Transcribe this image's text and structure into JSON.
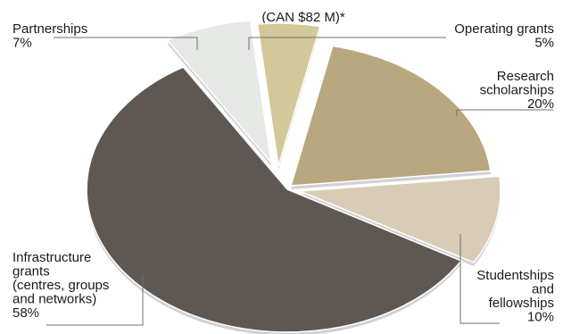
{
  "chart_data": {
    "type": "pie",
    "title": "",
    "subtitle": "(CAN $82 M)*",
    "slices": [
      {
        "label_lines": [
          "Research",
          "scholarships",
          "20%"
        ],
        "value": 20,
        "color": "#b9a77f"
      },
      {
        "label_lines": [
          "Studentships",
          "and",
          "fellowships",
          "10%"
        ],
        "value": 10,
        "color": "#d8ccb7"
      },
      {
        "label_lines": [
          "Infrastructure",
          "grants",
          "(centres, groups",
          "and networks)",
          "58%"
        ],
        "value": 58,
        "color": "#5f5752"
      },
      {
        "label_lines": [
          "Partnerships",
          "7%"
        ],
        "value": 7,
        "color": "#e6e8e6"
      },
      {
        "label_lines": [
          "Operating grants",
          "5%"
        ],
        "value": 5,
        "color": "#d2c89a"
      }
    ]
  }
}
